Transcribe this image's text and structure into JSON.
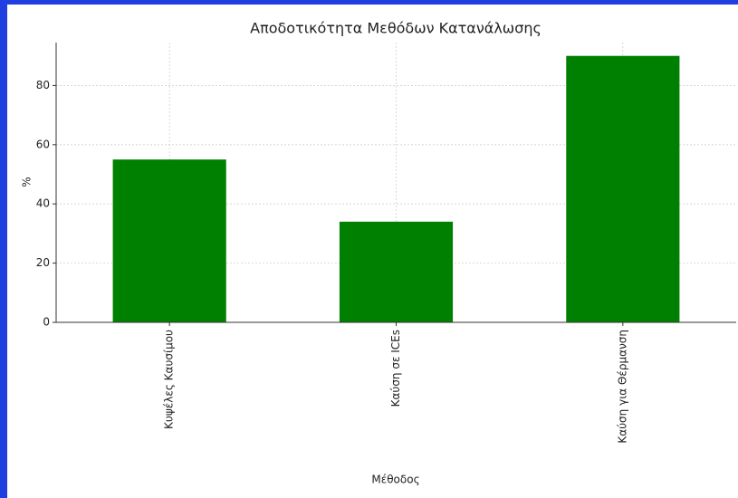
{
  "chart_data": {
    "type": "bar",
    "title": "Αποδοτικότητα Μεθόδων Κατανάλωσης",
    "x_label": "Μέθοδος",
    "y_label": "%",
    "categories": [
      "Κυψέλες Καυσίμου",
      "Καύση σε ICEs",
      "Καύση για Θέρμανση"
    ],
    "values": [
      55,
      34,
      90
    ],
    "color": "#008000",
    "ylim": [
      0,
      94.5
    ],
    "yticks": [
      0,
      20,
      40,
      60,
      80
    ],
    "grid": true
  }
}
